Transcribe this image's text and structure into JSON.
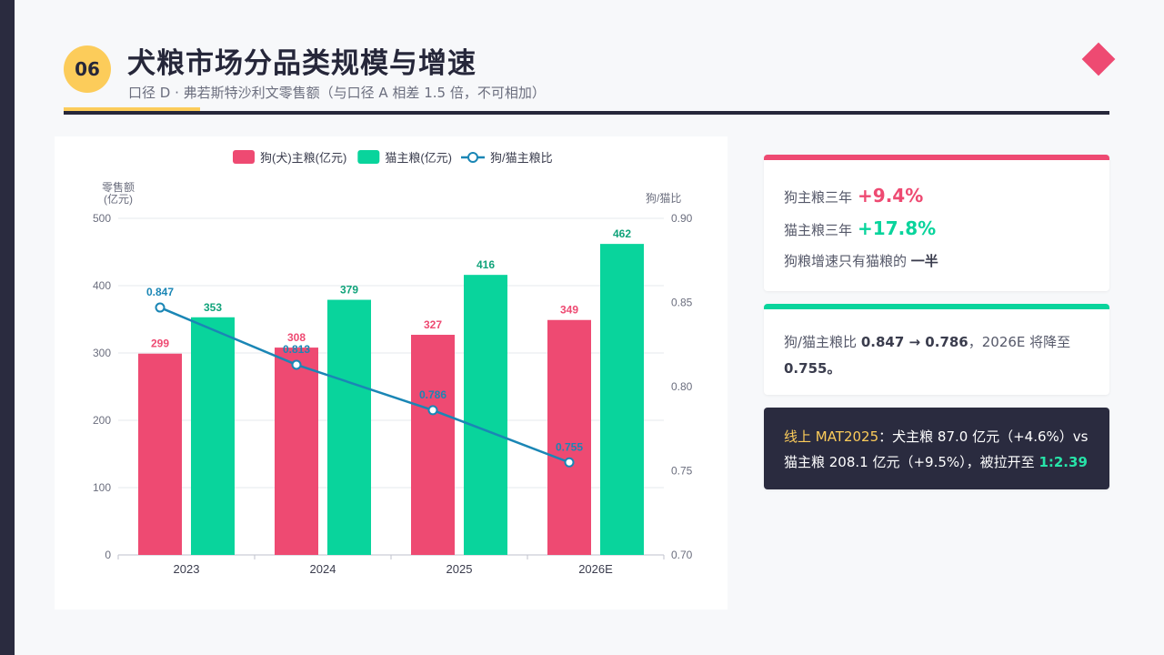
{
  "header": {
    "badge": "06",
    "title": "犬粮市场分品类规模与增速",
    "subtitle": "口径 D · 弗若斯特沙利文零售额（与口径 A 相差 1.5 倍，不可相加）"
  },
  "colors": {
    "dog": "#ee4a72",
    "cat": "#09d49c",
    "ratio": "#1a86b5",
    "dark": "#2a2b3f",
    "gold": "#fccc5a"
  },
  "chart_data": {
    "type": "bar",
    "categories": [
      "2023",
      "2024",
      "2025",
      "2026E"
    ],
    "series": [
      {
        "name": "狗(犬)主粮(亿元)",
        "type": "bar",
        "axis": "left",
        "color": "#ee4a72",
        "values": [
          299,
          308,
          327,
          349
        ]
      },
      {
        "name": "猫主粮(亿元)",
        "type": "bar",
        "axis": "left",
        "color": "#09d49c",
        "values": [
          353,
          379,
          416,
          462
        ]
      },
      {
        "name": "狗/猫主粮比",
        "type": "line",
        "axis": "right",
        "color": "#1a86b5",
        "values": [
          0.847,
          0.813,
          0.786,
          0.755
        ]
      }
    ],
    "ylabel_left": "零售额\n(亿元)",
    "ylabel_right": "狗/猫比",
    "ylim_left": [
      0,
      500
    ],
    "ylim_right": [
      0.7,
      0.9
    ],
    "yticks_left": [
      0,
      100,
      200,
      300,
      400,
      500
    ],
    "yticks_right": [
      "0.70",
      "0.75",
      "0.80",
      "0.85",
      "0.90"
    ],
    "grid": true,
    "legend": "top-center"
  },
  "cards": {
    "c1_l1_text": "狗主粮三年",
    "c1_l1_value": "+9.4%",
    "c1_l2_text": "猫主粮三年",
    "c1_l2_value": "+17.8%",
    "c1_l3_text": "狗粮增速只有猫粮的",
    "c1_l3_strong": "一半",
    "c2_a": "狗/猫主粮比",
    "c2_b": "0.847 → 0.786",
    "c2_c": "，2026E 将降至",
    "c2_d": "0.755。",
    "c3_gold": "线上 MAT2025",
    "c3_text": "：犬主粮 87.0 亿元（+4.6%）vs 猫主粮 208.1 亿元（+9.5%），被拉开至",
    "c3_mint": "1:2.39"
  }
}
